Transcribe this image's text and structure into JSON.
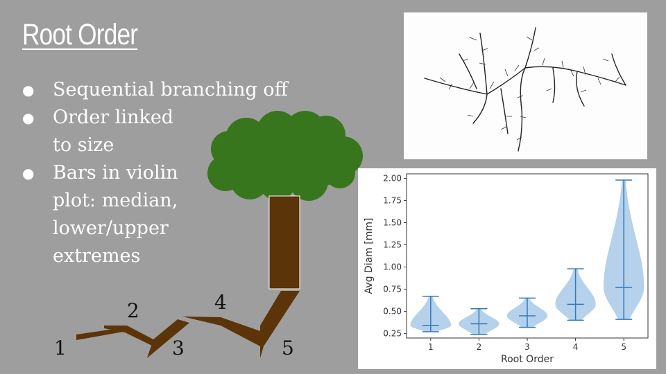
{
  "slide": {
    "title": "Root Order",
    "bullets": [
      {
        "lines": [
          "Sequential branching off"
        ]
      },
      {
        "lines": [
          "Order linked",
          "to size"
        ]
      },
      {
        "lines": [
          "Bars in violin",
          "plot: median,",
          "lower/upper",
          "extremes"
        ]
      }
    ],
    "bullet_symbol": "●"
  },
  "tree_diagram": {
    "labels": [
      "1",
      "2",
      "3",
      "4",
      "5"
    ],
    "colors": {
      "canopy": "#38761d",
      "trunk": "#5b3409"
    }
  },
  "chart_data": {
    "type": "violin",
    "xlabel": "Root Order",
    "ylabel": "Avg Diam [mm]",
    "categories": [
      "1",
      "2",
      "3",
      "4",
      "5"
    ],
    "ylim": [
      0.2,
      2.05
    ],
    "yticks": [
      "0.25",
      "0.50",
      "0.75",
      "1.00",
      "1.25",
      "1.50",
      "1.75",
      "2.00"
    ],
    "series": [
      {
        "category": "1",
        "min": 0.27,
        "median": 0.34,
        "max": 0.67
      },
      {
        "category": "2",
        "min": 0.24,
        "median": 0.36,
        "max": 0.53
      },
      {
        "category": "3",
        "min": 0.32,
        "median": 0.45,
        "max": 0.65
      },
      {
        "category": "4",
        "min": 0.4,
        "median": 0.58,
        "max": 0.98
      },
      {
        "category": "5",
        "min": 0.41,
        "median": 0.77,
        "max": 1.98
      }
    ],
    "colors": {
      "body": "#a9c9e8",
      "lines": "#2f7ab8",
      "frame": "#333333"
    },
    "grid": false
  }
}
